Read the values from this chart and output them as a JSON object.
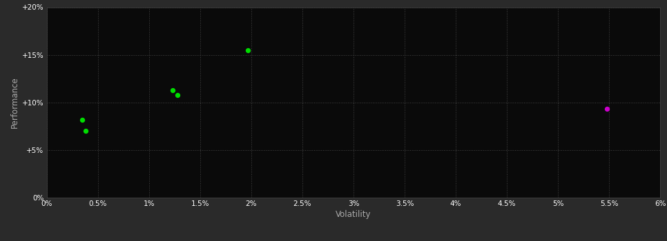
{
  "background_color": "#2a2a2a",
  "plot_bg_color": "#0a0a0a",
  "grid_color": "#444444",
  "text_color": "#ffffff",
  "tick_label_color": "#ffffff",
  "axis_label_color": "#aaaaaa",
  "green_points": [
    [
      0.35,
      8.2
    ],
    [
      0.38,
      7.0
    ],
    [
      1.23,
      11.3
    ],
    [
      1.28,
      10.8
    ],
    [
      1.97,
      15.5
    ]
  ],
  "magenta_points": [
    [
      5.48,
      9.3
    ]
  ],
  "green_color": "#00dd00",
  "magenta_color": "#cc00cc",
  "xlabel": "Volatility",
  "ylabel": "Performance",
  "xlim": [
    0.0,
    6.0
  ],
  "ylim": [
    0.0,
    20.0
  ],
  "x_ticks": [
    0.0,
    0.5,
    1.0,
    1.5,
    2.0,
    2.5,
    3.0,
    3.5,
    4.0,
    4.5,
    5.0,
    5.5,
    6.0
  ],
  "y_ticks": [
    0.0,
    5.0,
    10.0,
    15.0,
    20.0
  ],
  "x_tick_labels": [
    "0%",
    "0.5%",
    "1%",
    "1.5%",
    "2%",
    "2.5%",
    "3%",
    "3.5%",
    "4%",
    "4.5%",
    "5%",
    "5.5%",
    "6%"
  ],
  "y_tick_labels": [
    "0%",
    "+5%",
    "+10%",
    "+15%",
    "+20%"
  ],
  "marker_size": 28,
  "figsize": [
    9.66,
    3.5
  ],
  "dpi": 100
}
